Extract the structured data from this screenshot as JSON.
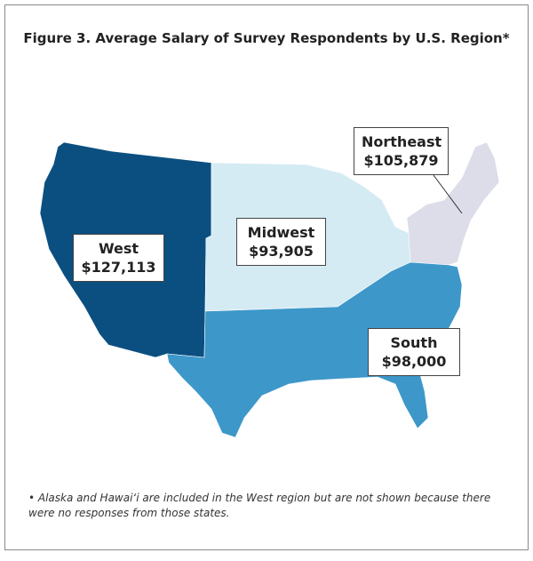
{
  "chart_data": {
    "type": "choropleth-map",
    "title": "Figure 3. Average Salary of Survey Respondents by U.S. Region*",
    "regions": [
      {
        "name": "West",
        "value": 127113,
        "label": "$127,113",
        "color": "#0b4f80"
      },
      {
        "name": "Midwest",
        "value": 93905,
        "label": "$93,905",
        "color": "#d5ebf4"
      },
      {
        "name": "Northeast",
        "value": 105879,
        "label": "$105,879",
        "color": "#dcdde9"
      },
      {
        "name": "South",
        "value": 98000,
        "label": "$98,000",
        "color": "#3d97c9"
      }
    ],
    "footnote": "• Alaska and Hawai‘i are included in the West region but are not shown because there were no responses from those states."
  }
}
